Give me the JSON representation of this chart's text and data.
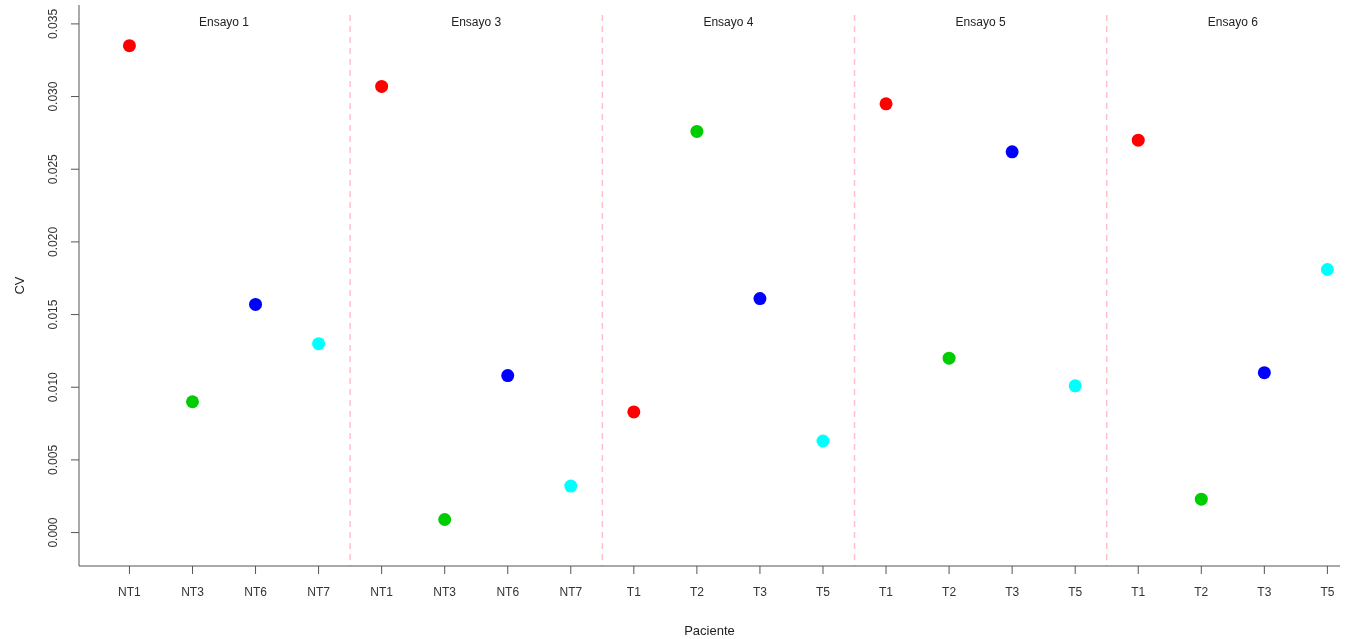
{
  "chart_data": {
    "type": "scatter",
    "xlabel": "Paciente",
    "ylabel": "CV",
    "categories": [
      "NT1",
      "NT3",
      "NT6",
      "NT7",
      "NT1",
      "NT3",
      "NT6",
      "NT7",
      "T1",
      "T2",
      "T3",
      "T5",
      "T1",
      "T2",
      "T3",
      "T5",
      "T1",
      "T2",
      "T3",
      "T5"
    ],
    "values": [
      0.0335,
      0.009,
      0.0157,
      0.013,
      0.0307,
      0.0009,
      0.0108,
      0.0032,
      0.0083,
      0.0276,
      0.0161,
      0.0063,
      0.0295,
      0.012,
      0.0262,
      0.0101,
      0.027,
      0.0023,
      0.011,
      0.0181
    ],
    "colors": [
      "#ff0000",
      "#00cd00",
      "#0000ff",
      "#00ffff",
      "#ff0000",
      "#00cd00",
      "#0000ff",
      "#00ffff",
      "#ff0000",
      "#00cd00",
      "#0000ff",
      "#00ffff",
      "#ff0000",
      "#00cd00",
      "#0000ff",
      "#00ffff",
      "#ff0000",
      "#00cd00",
      "#0000ff",
      "#00ffff"
    ],
    "marker": "circle",
    "ylim": [
      -0.0023,
      0.0363
    ],
    "yticks": [
      {
        "value": 0,
        "label": "0.000"
      },
      {
        "value": 0.005,
        "label": "0.005"
      },
      {
        "value": 0.01,
        "label": "0.010"
      },
      {
        "value": 0.015,
        "label": "0.015"
      },
      {
        "value": 0.02,
        "label": "0.020"
      },
      {
        "value": 0.025,
        "label": "0.025"
      },
      {
        "value": 0.03,
        "label": "0.030"
      },
      {
        "value": 0.035,
        "label": "0.035"
      }
    ],
    "annotations": [
      "Ensayo 1",
      "Ensayo 3",
      "Ensayo 4",
      "Ensayo 5",
      "Ensayo 6"
    ]
  }
}
